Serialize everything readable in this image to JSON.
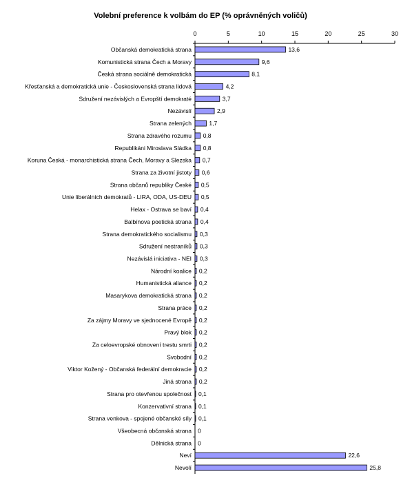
{
  "chart_data": {
    "type": "bar",
    "orientation": "horizontal",
    "title": "Volební preference k volbám do EP (% oprávněných voličů)",
    "xlim": [
      0,
      30
    ],
    "ticks": [
      0,
      5,
      10,
      15,
      20,
      25,
      30
    ],
    "tick_labels": [
      "0",
      "5",
      "10",
      "15",
      "20",
      "25",
      "30"
    ],
    "grid": false,
    "legend": "none",
    "bar_color": "#9999ff",
    "categories": [
      "Občanská demokratická strana",
      "Komunistická strana Čech a Moravy",
      "Česká strana sociálně demokratická",
      "Křesťanská a demokratická unie - Československá strana lidová",
      "Sdružení nezávislých a Evropští demokraté",
      "Nezávislí",
      "Strana zelených",
      "Strana zdravého rozumu",
      "Republikáni Miroslava Sládka",
      "Koruna Česká - monarchistická strana Čech, Moravy a Slezska",
      "Strana za životní jistoty",
      "Strana občanů republiky České",
      "Unie liberálních demokratů - LIRA, ODA, US-DEU",
      "Helax - Ostrava se baví",
      "Balbínova poetická strana",
      "Strana demokratického socialismu",
      "Sdružení nestraníků",
      "Nezávislá iniciativa - NEI",
      "Národní koalice",
      "Humanistická aliance",
      "Masarykova demokratická strana",
      "Strana práce",
      "Za zájmy Moravy ve sjednocené Evropě",
      "Pravý blok",
      "Za celoevropské obnovení trestu smrti",
      "Svobodní",
      "Viktor Kožený - Občanská federální demokracie",
      "Jiná strana",
      "Strana pro otevřenou společnost",
      "Konzervativní strana",
      "Strana venkova - spojené občanské síly",
      "Všeobecná občanská strana",
      "Dělnická strana",
      "Neví",
      "Nevolí"
    ],
    "values": [
      13.6,
      9.6,
      8.1,
      4.2,
      3.7,
      2.9,
      1.7,
      0.8,
      0.8,
      0.7,
      0.6,
      0.5,
      0.5,
      0.4,
      0.4,
      0.3,
      0.3,
      0.3,
      0.2,
      0.2,
      0.2,
      0.2,
      0.2,
      0.2,
      0.2,
      0.2,
      0.2,
      0.2,
      0.1,
      0.1,
      0.1,
      0,
      0,
      22.6,
      25.8
    ],
    "value_labels": [
      "13,6",
      "9,6",
      "8,1",
      "4,2",
      "3,7",
      "2,9",
      "1,7",
      "0,8",
      "0,8",
      "0,7",
      "0,6",
      "0,5",
      "0,5",
      "0,4",
      "0,4",
      "0,3",
      "0,3",
      "0,3",
      "0,2",
      "0,2",
      "0,2",
      "0,2",
      "0,2",
      "0,2",
      "0,2",
      "0,2",
      "0,2",
      "0,2",
      "0,1",
      "0,1",
      "0,1",
      "0",
      "0",
      "22,6",
      "25,8"
    ]
  }
}
